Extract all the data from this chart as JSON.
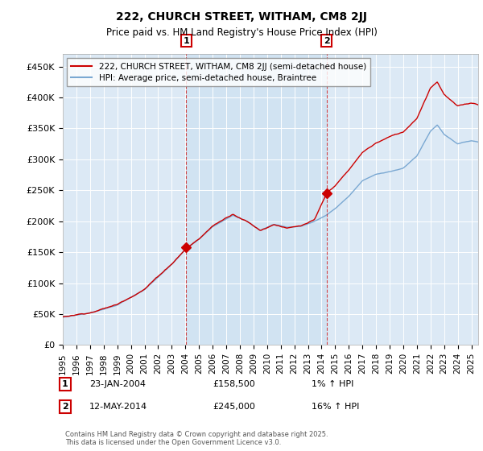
{
  "title": "222, CHURCH STREET, WITHAM, CM8 2JJ",
  "subtitle": "Price paid vs. HM Land Registry's House Price Index (HPI)",
  "ylabel_ticks": [
    "£0",
    "£50K",
    "£100K",
    "£150K",
    "£200K",
    "£250K",
    "£300K",
    "£350K",
    "£400K",
    "£450K"
  ],
  "ytick_values": [
    0,
    50000,
    100000,
    150000,
    200000,
    250000,
    300000,
    350000,
    400000,
    450000
  ],
  "ylim": [
    0,
    470000
  ],
  "xlim_start": 1995.0,
  "xlim_end": 2025.5,
  "background_color": "#dce9f5",
  "shaded_color": "#c8dff0",
  "red_line_color": "#cc0000",
  "blue_line_color": "#7aa8d2",
  "marker1_x": 2004.07,
  "marker1_y": 158500,
  "marker2_x": 2014.37,
  "marker2_y": 245000,
  "annotation1_date": "23-JAN-2004",
  "annotation1_price": "£158,500",
  "annotation1_hpi": "1% ↑ HPI",
  "annotation2_date": "12-MAY-2014",
  "annotation2_price": "£245,000",
  "annotation2_hpi": "16% ↑ HPI",
  "legend_label1": "222, CHURCH STREET, WITHAM, CM8 2JJ (semi-detached house)",
  "legend_label2": "HPI: Average price, semi-detached house, Braintree",
  "footer": "Contains HM Land Registry data © Crown copyright and database right 2025.\nThis data is licensed under the Open Government Licence v3.0.",
  "xtick_years": [
    1995,
    1996,
    1997,
    1998,
    1999,
    2000,
    2001,
    2002,
    2003,
    2004,
    2005,
    2006,
    2007,
    2008,
    2009,
    2010,
    2011,
    2012,
    2013,
    2014,
    2015,
    2016,
    2017,
    2018,
    2019,
    2020,
    2021,
    2022,
    2023,
    2024,
    2025
  ]
}
